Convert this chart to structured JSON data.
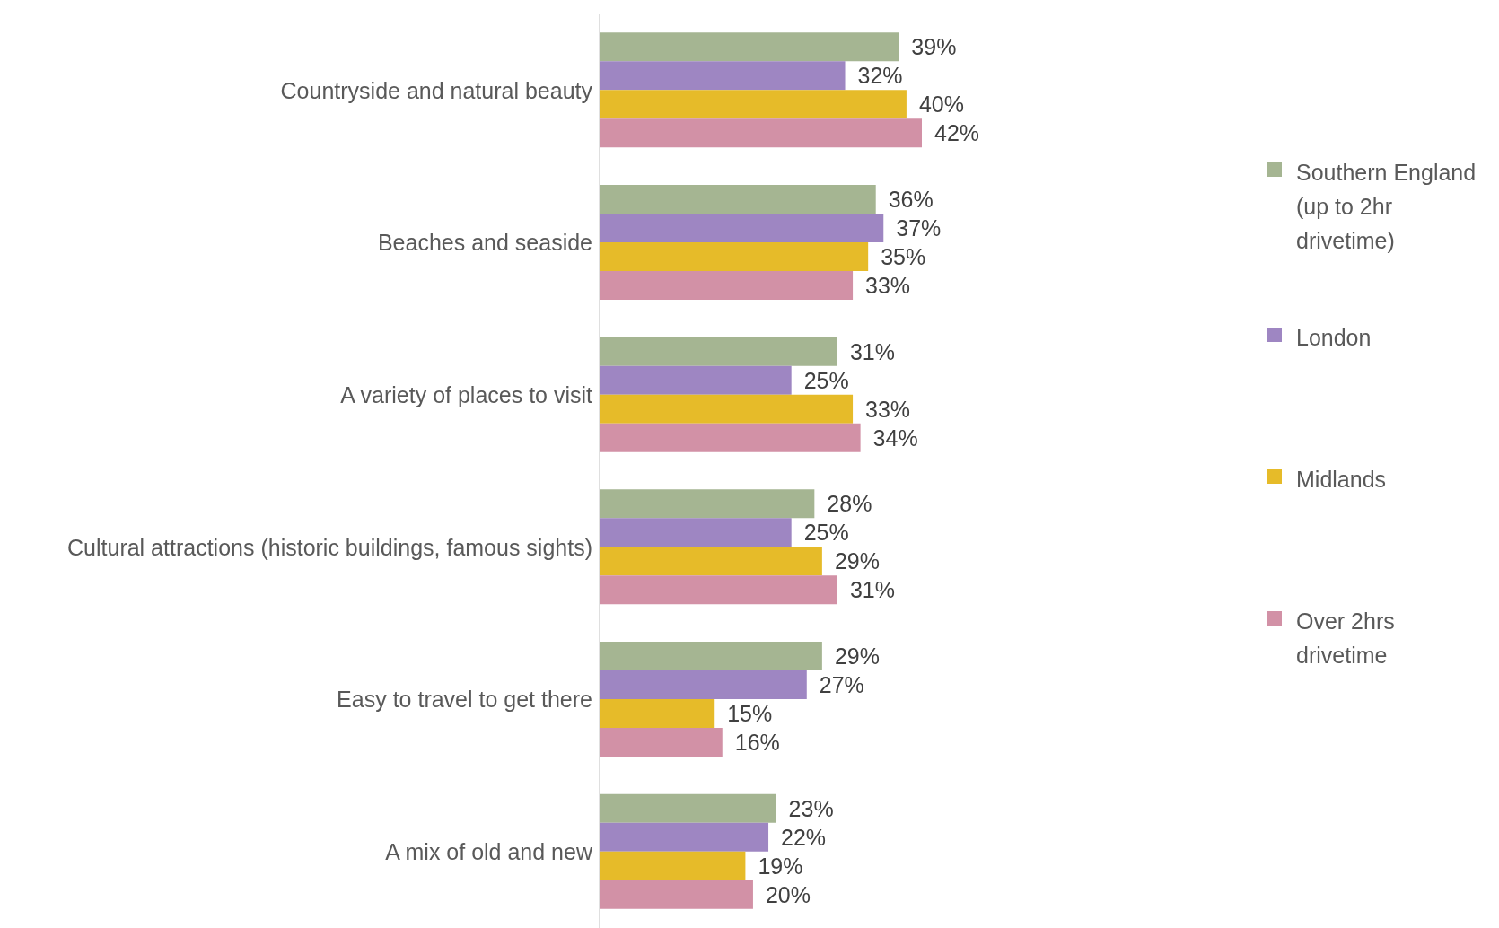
{
  "chart_data": {
    "type": "bar",
    "orientation": "horizontal",
    "legend": "right",
    "grid": false,
    "categories": [
      "Countryside and natural beauty",
      "Beaches and seaside",
      "A variety of places to visit",
      "Cultural attractions (historic buildings, famous sights)",
      "Easy to travel to get there",
      "A mix of old and new"
    ],
    "series": [
      {
        "name": "Southern England (up to 2hr drivetime)",
        "color": "#a5b592",
        "values": [
          39,
          36,
          31,
          28,
          29,
          23
        ],
        "value_labels": [
          "39%",
          "36%",
          "31%",
          "28%",
          "29%",
          "23%"
        ]
      },
      {
        "name": "London",
        "color": "#9e86c2",
        "values": [
          32,
          37,
          25,
          25,
          27,
          22
        ],
        "value_labels": [
          "32%",
          "37%",
          "25%",
          "25%",
          "27%",
          "22%"
        ]
      },
      {
        "name": "Midlands",
        "color": "#e6bb29",
        "values": [
          40,
          35,
          33,
          29,
          15,
          19
        ],
        "value_labels": [
          "40%",
          "35%",
          "33%",
          "29%",
          "15%",
          "19%"
        ]
      },
      {
        "name": "Over 2hrs drivetime",
        "color": "#d291a6",
        "values": [
          42,
          33,
          34,
          31,
          16,
          20
        ],
        "value_labels": [
          "42%",
          "33%",
          "34%",
          "31%",
          "16%",
          "20%"
        ]
      }
    ]
  }
}
